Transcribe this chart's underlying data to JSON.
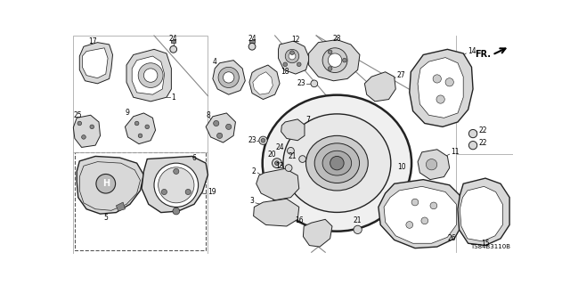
{
  "bg_color": "#ffffff",
  "diagram_code": "TS84B3110B",
  "fr_label": "FR.",
  "line_color": "#222222",
  "part_fill": "#d8d8d8",
  "part_dark": "#888888",
  "label_fs": 5.5,
  "lw": 0.7,
  "figw": 6.4,
  "figh": 3.2,
  "dpi": 100
}
